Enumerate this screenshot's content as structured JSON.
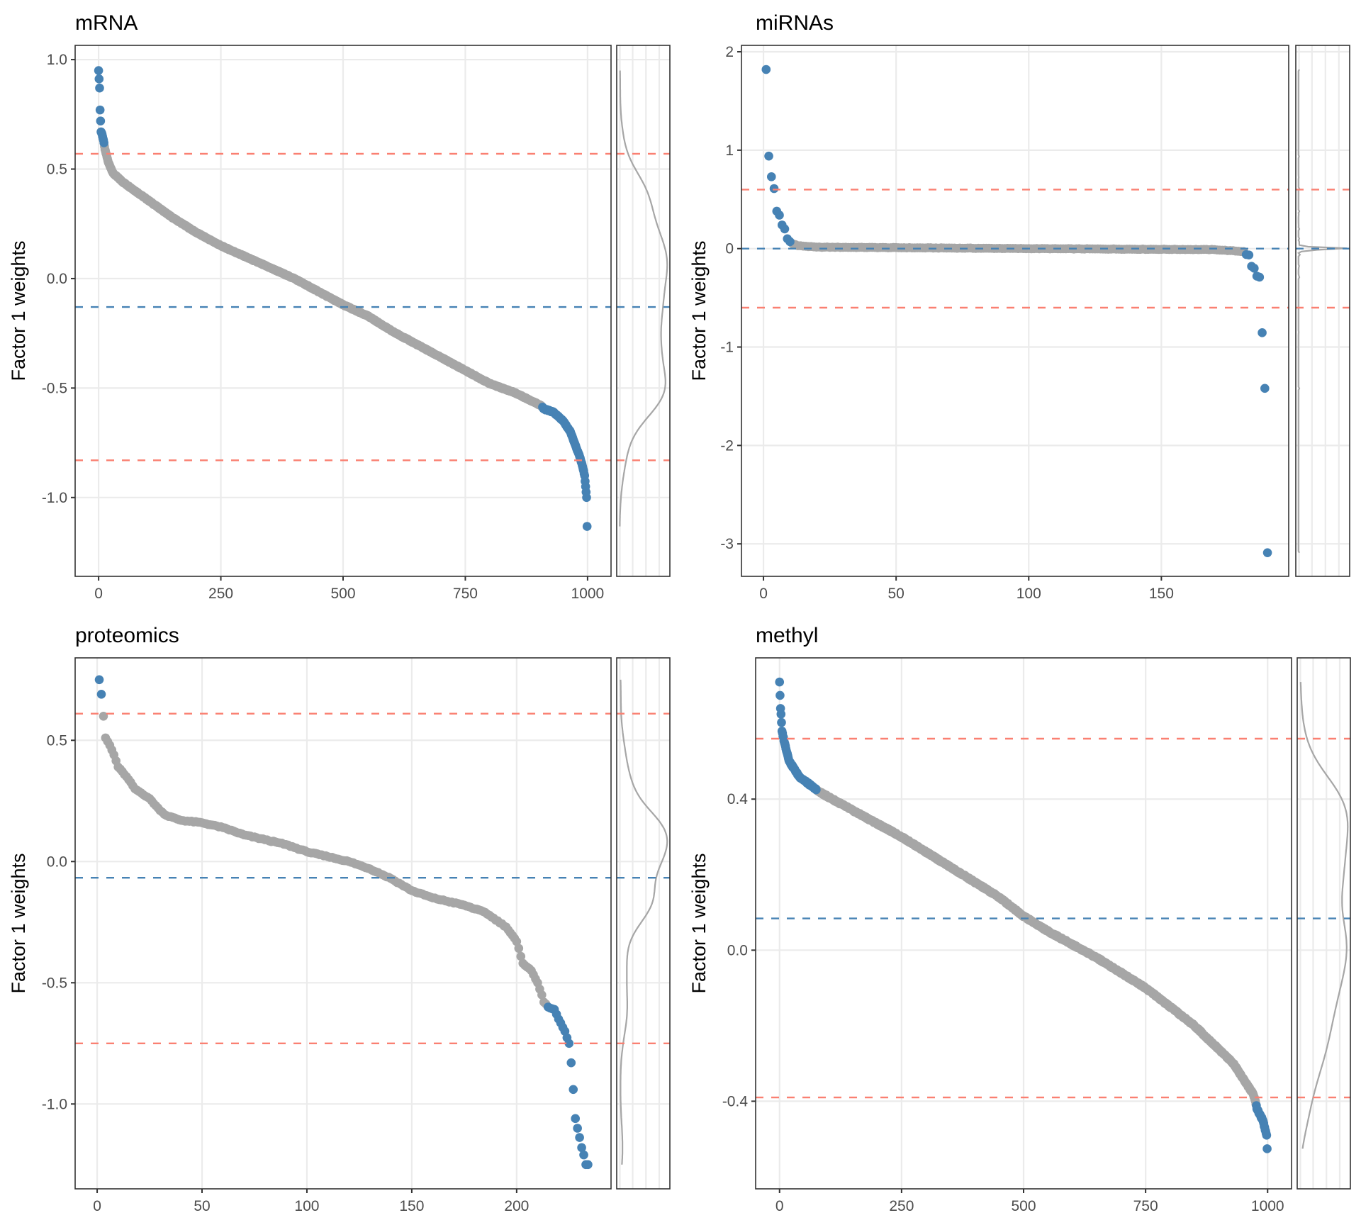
{
  "figure": {
    "y_axis_label": "Factor 1 weights",
    "colors": {
      "highlight": "#4682b4",
      "normal": "#a6a6a6",
      "threshold": "#fa8072",
      "mean_line": "#4682b4",
      "density": "#a6a6a6",
      "grid": "#ebebeb"
    }
  },
  "chart_data": [
    {
      "type": "scatter",
      "title": "mRNA",
      "xlabel": "",
      "ylabel": "Factor 1 weights",
      "n_features": 1000,
      "xlim": [
        -48,
        1048
      ],
      "ylim": [
        -1.36,
        1.065
      ],
      "x_ticks": [
        0,
        250,
        500,
        750,
        1000
      ],
      "x_tick_labels": [
        "0",
        "250",
        "500",
        "750",
        "1000"
      ],
      "y_ticks": [
        1.0,
        0.5,
        0.0,
        -0.5,
        -1.0
      ],
      "y_tick_labels": [
        "1.0",
        "0.5",
        "0.0",
        "-0.5",
        "-1.0"
      ],
      "threshold_lines": [
        0.57,
        -0.83
      ],
      "mean_line": -0.13,
      "grid": true,
      "sorted_weight_knots": [
        [
          0,
          0.95
        ],
        [
          2,
          0.87
        ],
        [
          3,
          0.77
        ],
        [
          5,
          0.67
        ],
        [
          7,
          0.66
        ],
        [
          9,
          0.64
        ],
        [
          11,
          0.62
        ],
        [
          13,
          0.59
        ],
        [
          20,
          0.53
        ],
        [
          30,
          0.48
        ],
        [
          50,
          0.44
        ],
        [
          100,
          0.36
        ],
        [
          150,
          0.28
        ],
        [
          200,
          0.21
        ],
        [
          250,
          0.15
        ],
        [
          300,
          0.1
        ],
        [
          350,
          0.05
        ],
        [
          400,
          0.0
        ],
        [
          450,
          -0.06
        ],
        [
          500,
          -0.12
        ],
        [
          550,
          -0.17
        ],
        [
          600,
          -0.24
        ],
        [
          650,
          -0.3
        ],
        [
          700,
          -0.36
        ],
        [
          750,
          -0.42
        ],
        [
          800,
          -0.48
        ],
        [
          850,
          -0.52
        ],
        [
          905,
          -0.58
        ],
        [
          910,
          -0.595
        ],
        [
          930,
          -0.61
        ],
        [
          950,
          -0.65
        ],
        [
          965,
          -0.7
        ],
        [
          975,
          -0.76
        ],
        [
          985,
          -0.82
        ],
        [
          990,
          -0.86
        ],
        [
          994,
          -0.9
        ],
        [
          996,
          -0.95
        ],
        [
          998,
          -1.0
        ],
        [
          1000,
          -1.26
        ]
      ],
      "highlight_ranges": [
        [
          0,
          11
        ],
        [
          908,
          1000
        ]
      ]
    },
    {
      "type": "scatter",
      "title": "miRNAs",
      "xlabel": "",
      "ylabel": "Factor 1 weights",
      "n_features": 190,
      "xlim": [
        -8.3,
        198
      ],
      "ylim": [
        -3.33,
        2.065
      ],
      "x_ticks": [
        0,
        50,
        100,
        150
      ],
      "x_tick_labels": [
        "0",
        "50",
        "100",
        "150"
      ],
      "y_ticks": [
        2,
        1,
        0,
        -1,
        -2,
        -3
      ],
      "y_tick_labels": [
        "2",
        "1",
        "0",
        "-1",
        "-2",
        "-3"
      ],
      "threshold_lines": [
        0.6,
        -0.6
      ],
      "mean_line": 0.0,
      "grid": true,
      "sorted_weight_knots": [
        [
          1,
          1.82
        ],
        [
          2,
          0.94
        ],
        [
          3,
          0.73
        ],
        [
          4,
          0.61
        ],
        [
          5,
          0.38
        ],
        [
          6,
          0.34
        ],
        [
          7,
          0.24
        ],
        [
          8,
          0.2
        ],
        [
          9,
          0.1
        ],
        [
          10,
          0.07
        ],
        [
          11,
          0.05
        ],
        [
          13,
          0.03
        ],
        [
          20,
          0.015
        ],
        [
          100,
          0.0
        ],
        [
          170,
          -0.01
        ],
        [
          181,
          -0.03
        ],
        [
          182,
          -0.06
        ],
        [
          183,
          -0.065
        ],
        [
          184,
          -0.18
        ],
        [
          185,
          -0.2
        ],
        [
          186,
          -0.28
        ],
        [
          187,
          -0.29
        ],
        [
          189,
          -1.42
        ],
        [
          190,
          -3.09
        ]
      ],
      "highlight_ranges": [
        [
          1,
          10
        ],
        [
          182,
          190
        ]
      ]
    },
    {
      "type": "scatter",
      "title": "proteomics",
      "xlabel": "",
      "ylabel": "Factor 1 weights",
      "n_features": 234,
      "xlim": [
        -10.5,
        245
      ],
      "ylim": [
        -1.35,
        0.84
      ],
      "x_ticks": [
        0,
        50,
        100,
        150,
        200
      ],
      "x_tick_labels": [
        "0",
        "50",
        "100",
        "150",
        "200"
      ],
      "y_ticks": [
        0.5,
        0.0,
        -0.5,
        -1.0
      ],
      "y_tick_labels": [
        "0.5",
        "0.0",
        "-0.5",
        "-1.0"
      ],
      "threshold_lines": [
        0.61,
        -0.75
      ],
      "mean_line": -0.067,
      "grid": true,
      "sorted_weight_knots": [
        [
          1,
          0.75
        ],
        [
          2,
          0.69
        ],
        [
          4,
          0.51
        ],
        [
          6,
          0.48
        ],
        [
          8,
          0.44
        ],
        [
          10,
          0.39
        ],
        [
          14,
          0.35
        ],
        [
          18,
          0.3
        ],
        [
          25,
          0.26
        ],
        [
          30,
          0.21
        ],
        [
          33,
          0.19
        ],
        [
          40,
          0.17
        ],
        [
          50,
          0.16
        ],
        [
          60,
          0.14
        ],
        [
          70,
          0.11
        ],
        [
          80,
          0.09
        ],
        [
          90,
          0.07
        ],
        [
          100,
          0.04
        ],
        [
          110,
          0.02
        ],
        [
          120,
          0.0
        ],
        [
          130,
          -0.03
        ],
        [
          140,
          -0.07
        ],
        [
          150,
          -0.12
        ],
        [
          160,
          -0.15
        ],
        [
          175,
          -0.18
        ],
        [
          185,
          -0.21
        ],
        [
          195,
          -0.27
        ],
        [
          200,
          -0.33
        ],
        [
          203,
          -0.42
        ],
        [
          207,
          -0.45
        ],
        [
          210,
          -0.5
        ],
        [
          212,
          -0.55
        ],
        [
          213,
          -0.58
        ],
        [
          215,
          -0.6
        ],
        [
          218,
          -0.61
        ],
        [
          220,
          -0.65
        ],
        [
          223,
          -0.7
        ],
        [
          225,
          -0.75
        ],
        [
          226,
          -0.83
        ],
        [
          227,
          -0.94
        ],
        [
          228,
          -1.06
        ],
        [
          229,
          -1.1
        ],
        [
          231,
          -1.18
        ],
        [
          232,
          -1.21
        ],
        [
          233,
          -1.25
        ],
        [
          234,
          -1.25
        ]
      ],
      "highlight_ranges": [
        [
          1,
          2
        ],
        [
          215,
          234
        ]
      ]
    },
    {
      "type": "scatter",
      "title": "methyl",
      "xlabel": "",
      "ylabel": "Factor 1 weights",
      "n_features": 1000,
      "xlim": [
        -49,
        1049
      ],
      "ylim": [
        -0.632,
        0.774
      ],
      "x_ticks": [
        0,
        250,
        500,
        750,
        1000
      ],
      "x_tick_labels": [
        "0",
        "250",
        "500",
        "750",
        "1000"
      ],
      "y_ticks": [
        0.4,
        0.0,
        -0.4
      ],
      "y_tick_labels": [
        "0.4",
        "0.0",
        "-0.4"
      ],
      "threshold_lines": [
        0.56,
        -0.39
      ],
      "mean_line": 0.084,
      "grid": true,
      "sorted_weight_knots": [
        [
          0,
          0.71
        ],
        [
          2,
          0.64
        ],
        [
          3,
          0.625
        ],
        [
          5,
          0.58
        ],
        [
          10,
          0.55
        ],
        [
          20,
          0.5
        ],
        [
          40,
          0.46
        ],
        [
          70,
          0.43
        ],
        [
          80,
          0.42
        ],
        [
          150,
          0.37
        ],
        [
          250,
          0.3
        ],
        [
          350,
          0.22
        ],
        [
          450,
          0.14
        ],
        [
          500,
          0.09
        ],
        [
          550,
          0.05
        ],
        [
          650,
          -0.02
        ],
        [
          750,
          -0.1
        ],
        [
          850,
          -0.2
        ],
        [
          930,
          -0.3
        ],
        [
          970,
          -0.38
        ],
        [
          975,
          -0.4
        ],
        [
          978,
          -0.42
        ],
        [
          990,
          -0.45
        ],
        [
          998,
          -0.49
        ],
        [
          1000,
          -0.565
        ]
      ],
      "highlight_ranges": [
        [
          0,
          75
        ],
        [
          977,
          1000
        ]
      ]
    }
  ]
}
